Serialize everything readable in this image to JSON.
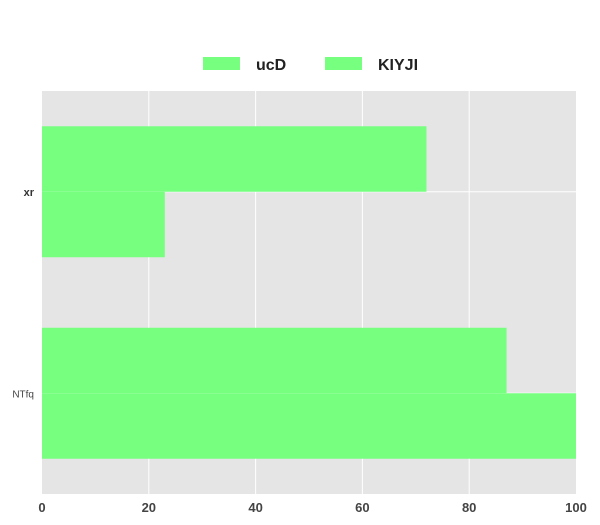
{
  "chart_data": {
    "type": "bar",
    "orientation": "horizontal",
    "categories": [
      "xr",
      "NTfq"
    ],
    "series": [
      {
        "name": "ucD",
        "values": [
          72,
          87
        ],
        "color": "#77ff80"
      },
      {
        "name": "KIYJI",
        "values": [
          23,
          100
        ],
        "color": "#77ff80"
      }
    ],
    "xlim": [
      0,
      100
    ],
    "x_ticks": [
      0,
      20,
      40,
      60,
      80,
      100
    ],
    "grid": true,
    "legend_position": "top",
    "plot_background": "#e5e5e5",
    "title": "",
    "xlabel": "",
    "ylabel": ""
  }
}
